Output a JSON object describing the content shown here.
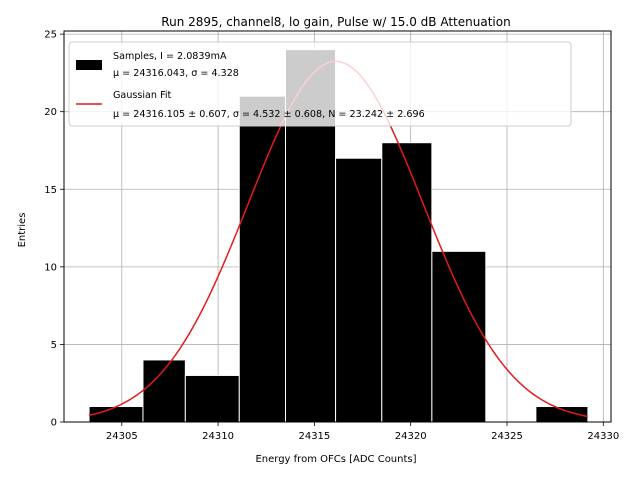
{
  "chart_data": {
    "type": "bar",
    "title": "Run 2895, channel8, lo gain, Pulse w/ 15.0 dB Attenuation",
    "xlabel": "Energy from OFCs [ADC Counts]",
    "ylabel": "Entries",
    "xlim": [
      24302,
      24330.4
    ],
    "ylim": [
      0,
      25.2
    ],
    "xticks": [
      24305,
      24310,
      24315,
      24320,
      24325,
      24330
    ],
    "yticks": [
      0,
      5,
      10,
      15,
      20,
      25
    ],
    "grid": true,
    "legend_position": "top-left",
    "bins": [
      {
        "x0": 24303.3,
        "x1": 24306.1,
        "count": 1
      },
      {
        "x0": 24306.1,
        "x1": 24308.3,
        "count": 4
      },
      {
        "x0": 24308.3,
        "x1": 24311.1,
        "count": 3
      },
      {
        "x0": 24311.1,
        "x1": 24313.5,
        "count": 21
      },
      {
        "x0": 24313.5,
        "x1": 24316.1,
        "count": 24
      },
      {
        "x0": 24316.1,
        "x1": 24318.5,
        "count": 17
      },
      {
        "x0": 24318.5,
        "x1": 24321.1,
        "count": 18
      },
      {
        "x0": 24321.1,
        "x1": 24323.9,
        "count": 11
      },
      {
        "x0": 24323.9,
        "x1": 24326.5,
        "count": 0
      },
      {
        "x0": 24326.5,
        "x1": 24329.2,
        "count": 1
      }
    ],
    "series": [
      {
        "name": "Samples, I = 2.0839mA",
        "stats": "μ = 24316.043, σ = 4.328",
        "color": "#000000"
      },
      {
        "name": "Gaussian Fit",
        "stats": "μ = 24316.105 ± 0.607, σ = 4.532 ± 0.608, N = 23.242 ± 2.696",
        "color": "#e41a1c"
      }
    ],
    "fit": {
      "mu": 24316.105,
      "sigma": 4.532,
      "N": 23.242,
      "x_range": [
        24303.3,
        24329.2
      ]
    }
  }
}
